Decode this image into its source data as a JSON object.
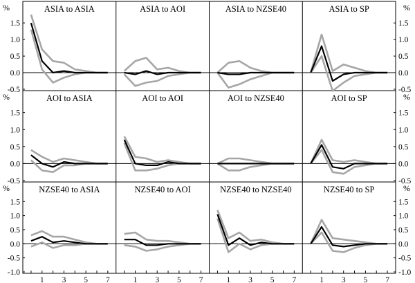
{
  "chart_data": {
    "type": "line",
    "layout": "3x4 grid of small multiples",
    "y_unit_label": "%",
    "x_ticks": [
      "1",
      "3",
      "5",
      "7"
    ],
    "ylim": [
      -0.5,
      1.9
    ],
    "ylim_bottom_row": [
      -1.0,
      1.9
    ],
    "y_ticks": [
      "1.5",
      "1.0",
      "0.5",
      "0.0",
      "-0.5"
    ],
    "y_ticks_bottom_row": [
      "1.5",
      "1.0",
      "0.5",
      "0.0",
      "-0.5",
      "-1.0"
    ],
    "series_style": {
      "estimate_color": "#000000",
      "band_color": "#a6a6a6"
    },
    "x": [
      0,
      1,
      2,
      3,
      4,
      5,
      6,
      7
    ],
    "panels": [
      {
        "title": "ASIA to ASIA",
        "mid": [
          1.5,
          0.35,
          0.0,
          0.05,
          0.0,
          0.0,
          0.0,
          0.0
        ],
        "upper": [
          1.75,
          0.7,
          0.35,
          0.3,
          0.1,
          0.05,
          0.0,
          0.0
        ],
        "lower": [
          1.3,
          0.1,
          -0.3,
          -0.15,
          -0.05,
          0.0,
          0.0,
          0.0
        ]
      },
      {
        "title": "ASIA to AOI",
        "mid": [
          0.0,
          -0.05,
          0.05,
          -0.05,
          0.0,
          0.0,
          0.0,
          0.0
        ],
        "upper": [
          0.05,
          0.35,
          0.45,
          0.1,
          0.15,
          0.05,
          0.0,
          0.0
        ],
        "lower": [
          -0.05,
          -0.4,
          -0.3,
          -0.25,
          -0.1,
          -0.05,
          0.0,
          0.0
        ]
      },
      {
        "title": "ASIA to NZSE40",
        "mid": [
          0.0,
          -0.05,
          -0.05,
          0.0,
          0.0,
          0.0,
          0.0,
          0.0
        ],
        "upper": [
          0.0,
          0.3,
          0.35,
          0.15,
          0.05,
          0.0,
          0.0,
          0.0
        ],
        "lower": [
          0.0,
          -0.45,
          -0.35,
          -0.2,
          -0.1,
          0.0,
          0.0,
          0.0
        ]
      },
      {
        "title": "ASIA to SP",
        "mid": [
          0.0,
          0.8,
          -0.25,
          -0.05,
          0.0,
          0.0,
          0.0,
          0.0
        ],
        "upper": [
          0.0,
          1.15,
          0.05,
          0.25,
          0.15,
          0.05,
          0.0,
          0.0
        ],
        "lower": [
          0.0,
          0.5,
          -0.55,
          -0.3,
          -0.1,
          -0.05,
          0.0,
          0.0
        ]
      },
      {
        "title": "AOI to ASIA",
        "mid": [
          0.25,
          0.0,
          -0.1,
          0.05,
          0.0,
          0.0,
          0.0,
          0.0
        ],
        "upper": [
          0.4,
          0.2,
          0.05,
          0.15,
          0.1,
          0.05,
          0.0,
          0.0
        ],
        "lower": [
          0.1,
          -0.2,
          -0.25,
          -0.05,
          -0.05,
          0.0,
          0.0,
          0.0
        ]
      },
      {
        "title": "AOI to AOI",
        "mid": [
          0.7,
          0.0,
          -0.05,
          -0.05,
          0.05,
          0.0,
          0.0,
          0.0
        ],
        "upper": [
          0.8,
          0.2,
          0.15,
          0.05,
          0.1,
          0.05,
          0.0,
          0.0
        ],
        "lower": [
          0.6,
          -0.2,
          -0.2,
          -0.15,
          -0.05,
          0.0,
          0.0,
          0.0
        ]
      },
      {
        "title": "AOI to NZSE40",
        "mid": [
          0.0,
          0.0,
          0.0,
          0.0,
          0.0,
          0.0,
          0.0,
          0.0
        ],
        "upper": [
          0.0,
          0.15,
          0.15,
          0.1,
          0.05,
          0.0,
          0.0,
          0.0
        ],
        "lower": [
          0.0,
          -0.2,
          -0.2,
          -0.1,
          -0.05,
          0.0,
          0.0,
          0.0
        ]
      },
      {
        "title": "AOI to SP",
        "mid": [
          0.0,
          0.55,
          -0.1,
          -0.15,
          0.0,
          0.0,
          0.0,
          0.0
        ],
        "upper": [
          0.0,
          0.7,
          0.1,
          0.05,
          0.1,
          0.05,
          0.0,
          0.0
        ],
        "lower": [
          0.0,
          0.4,
          -0.25,
          -0.3,
          -0.1,
          -0.05,
          0.0,
          0.0
        ]
      },
      {
        "title": "NZSE40 to ASIA",
        "mid": [
          0.1,
          0.25,
          0.05,
          0.1,
          0.05,
          0.0,
          0.0,
          0.0
        ],
        "upper": [
          0.3,
          0.45,
          0.25,
          0.25,
          0.15,
          0.05,
          0.0,
          0.0
        ],
        "lower": [
          -0.1,
          0.05,
          -0.15,
          -0.05,
          -0.05,
          0.0,
          0.0,
          0.0
        ]
      },
      {
        "title": "NZSE40 to AOI",
        "mid": [
          0.15,
          0.15,
          -0.05,
          -0.05,
          0.0,
          0.0,
          0.0,
          0.0
        ],
        "upper": [
          0.35,
          0.4,
          0.15,
          0.1,
          0.1,
          0.05,
          0.0,
          0.0
        ],
        "lower": [
          -0.05,
          -0.1,
          -0.25,
          -0.2,
          -0.1,
          -0.05,
          0.0,
          0.0
        ]
      },
      {
        "title": "NZSE40 to NZSE40",
        "mid": [
          1.05,
          -0.05,
          0.2,
          -0.05,
          0.05,
          0.0,
          0.0,
          0.0
        ],
        "upper": [
          1.2,
          0.2,
          0.4,
          0.1,
          0.15,
          0.05,
          0.0,
          0.0
        ],
        "lower": [
          0.9,
          -0.3,
          0.0,
          -0.2,
          -0.05,
          0.0,
          0.0,
          0.0
        ]
      },
      {
        "title": "NZSE40 to SP",
        "mid": [
          0.0,
          0.6,
          -0.05,
          -0.1,
          -0.05,
          0.0,
          0.0,
          0.0
        ],
        "upper": [
          0.0,
          0.85,
          0.2,
          0.15,
          0.1,
          0.05,
          0.0,
          0.0
        ],
        "lower": [
          0.0,
          0.4,
          -0.25,
          -0.3,
          -0.15,
          -0.05,
          0.0,
          0.0
        ]
      }
    ]
  }
}
